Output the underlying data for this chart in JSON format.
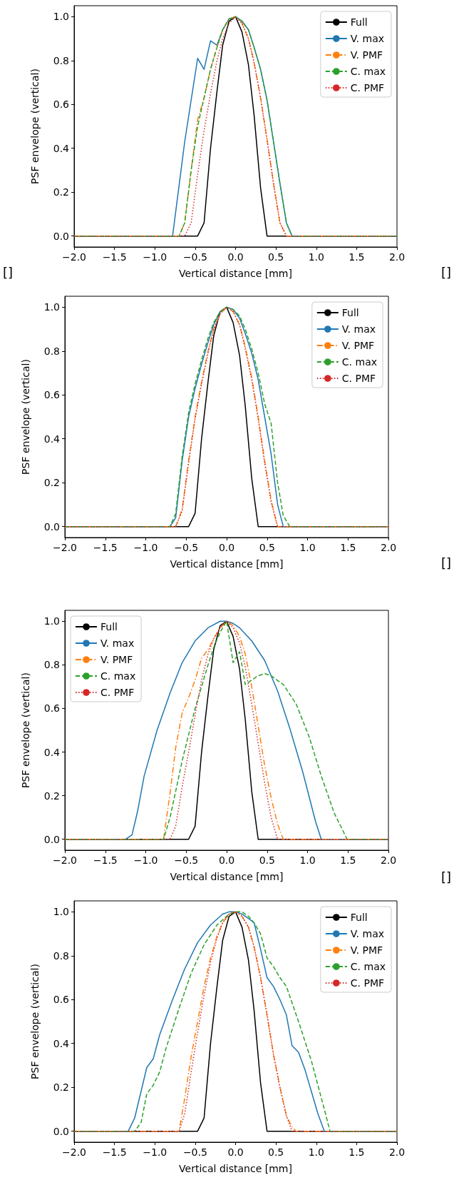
{
  "chart_data": [
    {
      "type": "line",
      "xlabel": "Vertical distance [mm]",
      "ylabel": "PSF envelope (vertical)",
      "annotations": [
        "[]",
        "[]"
      ],
      "legend": "top right",
      "grid": false,
      "marker": "none",
      "xlim": [
        -2,
        2
      ],
      "xticks": [
        {
          "value": -2,
          "label": "−2.0"
        },
        {
          "value": -1.5,
          "label": "−1.5"
        },
        {
          "value": -1,
          "label": "−1.0"
        },
        {
          "value": -0.5,
          "label": "−0.5"
        },
        {
          "value": 0,
          "label": "0.0"
        },
        {
          "value": 0.5,
          "label": "0.5"
        },
        {
          "value": 1,
          "label": "1.0"
        },
        {
          "value": 1.5,
          "label": "1.5"
        },
        {
          "value": 2,
          "label": "2.0"
        }
      ],
      "ylim": [
        -0.05,
        1.05
      ],
      "yticks": [
        {
          "value": 0,
          "label": "0.0"
        },
        {
          "value": 0.2,
          "label": "0.2"
        },
        {
          "value": 0.4,
          "label": "0.4"
        },
        {
          "value": 0.6,
          "label": "0.6"
        },
        {
          "value": 0.8,
          "label": "0.8"
        },
        {
          "value": 1,
          "label": "1.0"
        }
      ],
      "series": [
        {
          "name": "Full",
          "color": "#000000",
          "line_style": "solid",
          "x": [
            -2,
            -0.47,
            -0.39,
            -0.31,
            -0.23,
            -0.16,
            -0.08,
            0,
            0.08,
            0.16,
            0.23,
            0.31,
            0.39,
            2
          ],
          "values": [
            0,
            0,
            0.06,
            0.4,
            0.66,
            0.87,
            0.98,
            1.0,
            0.93,
            0.78,
            0.55,
            0.22,
            0,
            0
          ]
        },
        {
          "name": "V. max",
          "color": "#1f77b4",
          "line_style": "solid",
          "x": [
            -2,
            -0.78,
            -0.63,
            -0.47,
            -0.39,
            -0.31,
            -0.23,
            -0.16,
            -0.08,
            0,
            0.08,
            0.16,
            0.23,
            0.31,
            0.39,
            0.47,
            0.55,
            0.63,
            0.7,
            2
          ],
          "values": [
            0,
            0,
            0.43,
            0.81,
            0.76,
            0.89,
            0.87,
            0.94,
            0.99,
            1.0,
            0.98,
            0.94,
            0.86,
            0.76,
            0.62,
            0.43,
            0.24,
            0.06,
            0,
            0
          ]
        },
        {
          "name": "V. PMF",
          "color": "#ff7f0e",
          "line_style": "dashdot",
          "x": [
            -2,
            -0.7,
            -0.63,
            -0.55,
            -0.47,
            -0.39,
            -0.31,
            -0.23,
            -0.16,
            -0.08,
            0,
            0.08,
            0.16,
            0.23,
            0.31,
            0.39,
            0.47,
            0.55,
            0.63,
            2
          ],
          "values": [
            0,
            0,
            0.06,
            0.3,
            0.53,
            0.63,
            0.76,
            0.86,
            0.94,
            0.99,
            1,
            0.97,
            0.9,
            0.79,
            0.63,
            0.44,
            0.24,
            0.06,
            0,
            0
          ]
        },
        {
          "name": "C. max",
          "color": "#2ca02c",
          "line_style": "dashed",
          "x": [
            -2,
            -0.7,
            -0.63,
            -0.55,
            -0.47,
            -0.39,
            -0.31,
            -0.23,
            -0.16,
            -0.08,
            0,
            0.08,
            0.16,
            0.23,
            0.31,
            0.39,
            0.47,
            0.55,
            0.63,
            0.7,
            2
          ],
          "values": [
            0,
            0,
            0.06,
            0.3,
            0.5,
            0.63,
            0.76,
            0.86,
            0.94,
            0.99,
            1.0,
            0.98,
            0.94,
            0.86,
            0.76,
            0.62,
            0.43,
            0.24,
            0.06,
            0,
            0
          ]
        },
        {
          "name": "C. PMF",
          "color": "#d62728",
          "line_style": "dotted",
          "x": [
            -2,
            -0.63,
            -0.55,
            -0.47,
            -0.39,
            -0.31,
            -0.23,
            -0.16,
            -0.08,
            0,
            0.08,
            0.16,
            0.23,
            0.31,
            0.39,
            0.47,
            0.55,
            0.63,
            2
          ],
          "values": [
            0,
            0,
            0.06,
            0.28,
            0.48,
            0.65,
            0.8,
            0.9,
            0.97,
            1,
            0.97,
            0.9,
            0.79,
            0.63,
            0.44,
            0.24,
            0.06,
            0,
            0
          ]
        }
      ]
    },
    {
      "type": "line",
      "xlabel": "Vertical distance [mm]",
      "ylabel": "PSF envelope (vertical)",
      "annotations": [
        "[]"
      ],
      "legend": "top right",
      "grid": false,
      "marker": "none",
      "xlim": [
        -2,
        2
      ],
      "xticks": [
        {
          "value": -2,
          "label": "−2.0"
        },
        {
          "value": -1.5,
          "label": "−1.5"
        },
        {
          "value": -1,
          "label": "−1.0"
        },
        {
          "value": -0.5,
          "label": "−0.5"
        },
        {
          "value": 0,
          "label": "0.0"
        },
        {
          "value": 0.5,
          "label": "0.5"
        },
        {
          "value": 1,
          "label": "1.0"
        },
        {
          "value": 1.5,
          "label": "1.5"
        },
        {
          "value": 2,
          "label": "2.0"
        }
      ],
      "ylim": [
        -0.05,
        1.05
      ],
      "yticks": [
        {
          "value": 0,
          "label": "0.0"
        },
        {
          "value": 0.2,
          "label": "0.2"
        },
        {
          "value": 0.4,
          "label": "0.4"
        },
        {
          "value": 0.6,
          "label": "0.6"
        },
        {
          "value": 0.8,
          "label": "0.8"
        },
        {
          "value": 1,
          "label": "1.0"
        }
      ],
      "series": [
        {
          "name": "Full",
          "color": "#000000",
          "line_style": "solid",
          "x": [
            -2,
            -0.47,
            -0.39,
            -0.31,
            -0.23,
            -0.16,
            -0.08,
            0,
            0.08,
            0.16,
            0.23,
            0.31,
            0.39,
            2
          ],
          "values": [
            0,
            0,
            0.06,
            0.4,
            0.66,
            0.87,
            0.98,
            1.0,
            0.93,
            0.78,
            0.55,
            0.22,
            0,
            0
          ]
        },
        {
          "name": "V. max",
          "color": "#1f77b4",
          "line_style": "solid",
          "x": [
            -2,
            -0.7,
            -0.63,
            -0.55,
            -0.47,
            -0.39,
            -0.31,
            -0.23,
            -0.16,
            -0.08,
            0,
            0.08,
            0.16,
            0.23,
            0.31,
            0.39,
            0.47,
            0.55,
            0.63,
            0.7,
            2
          ],
          "values": [
            0,
            0,
            0.04,
            0.3,
            0.5,
            0.63,
            0.74,
            0.84,
            0.92,
            0.98,
            1,
            0.99,
            0.95,
            0.88,
            0.79,
            0.67,
            0.5,
            0.33,
            0.1,
            0,
            0
          ]
        },
        {
          "name": "V. PMF",
          "color": "#ff7f0e",
          "line_style": "dashdot",
          "x": [
            -2,
            -0.63,
            -0.55,
            -0.47,
            -0.39,
            -0.31,
            -0.23,
            -0.16,
            -0.08,
            0,
            0.08,
            0.16,
            0.23,
            0.31,
            0.39,
            0.47,
            0.55,
            0.63,
            2
          ],
          "values": [
            0,
            0,
            0.08,
            0.3,
            0.5,
            0.66,
            0.8,
            0.9,
            0.97,
            1,
            0.98,
            0.92,
            0.82,
            0.68,
            0.5,
            0.3,
            0.12,
            0,
            0
          ]
        },
        {
          "name": "C. max",
          "color": "#2ca02c",
          "line_style": "dashed",
          "x": [
            -2,
            -0.7,
            -0.63,
            -0.55,
            -0.47,
            -0.39,
            -0.31,
            -0.23,
            -0.16,
            -0.08,
            0,
            0.08,
            0.16,
            0.23,
            0.31,
            0.39,
            0.47,
            0.55,
            0.63,
            0.7,
            0.78,
            2
          ],
          "values": [
            0,
            0,
            0.06,
            0.32,
            0.52,
            0.65,
            0.76,
            0.86,
            0.93,
            0.98,
            1,
            0.99,
            0.96,
            0.9,
            0.81,
            0.7,
            0.56,
            0.47,
            0.2,
            0.05,
            0,
            0
          ]
        },
        {
          "name": "C. PMF",
          "color": "#d62728",
          "line_style": "dotted",
          "x": [
            -2,
            -0.63,
            -0.55,
            -0.47,
            -0.39,
            -0.31,
            -0.23,
            -0.16,
            -0.08,
            0,
            0.08,
            0.16,
            0.23,
            0.31,
            0.39,
            0.47,
            0.55,
            0.63,
            2
          ],
          "values": [
            0,
            0,
            0.07,
            0.29,
            0.49,
            0.65,
            0.79,
            0.9,
            0.97,
            1,
            0.98,
            0.92,
            0.81,
            0.67,
            0.49,
            0.29,
            0.11,
            0,
            0
          ]
        }
      ]
    },
    {
      "type": "line",
      "xlabel": "Vertical distance [mm]",
      "ylabel": "PSF envelope (vertical)",
      "annotations": [
        "[]"
      ],
      "legend": "top left",
      "grid": false,
      "marker": "none",
      "xlim": [
        -2,
        2
      ],
      "xticks": [
        {
          "value": -2,
          "label": "−2.0"
        },
        {
          "value": -1.5,
          "label": "−1.5"
        },
        {
          "value": -1,
          "label": "−1.0"
        },
        {
          "value": -0.5,
          "label": "−0.5"
        },
        {
          "value": 0,
          "label": "0.0"
        },
        {
          "value": 0.5,
          "label": "0.5"
        },
        {
          "value": 1,
          "label": "1.0"
        },
        {
          "value": 1.5,
          "label": "1.5"
        },
        {
          "value": 2,
          "label": "2.0"
        }
      ],
      "ylim": [
        -0.05,
        1.05
      ],
      "yticks": [
        {
          "value": 0,
          "label": "0.0"
        },
        {
          "value": 0.2,
          "label": "0.2"
        },
        {
          "value": 0.4,
          "label": "0.4"
        },
        {
          "value": 0.6,
          "label": "0.6"
        },
        {
          "value": 0.8,
          "label": "0.8"
        },
        {
          "value": 1,
          "label": "1.0"
        }
      ],
      "series": [
        {
          "name": "Full",
          "color": "#000000",
          "line_style": "solid",
          "x": [
            -2,
            -0.47,
            -0.39,
            -0.31,
            -0.23,
            -0.16,
            -0.08,
            0,
            0.08,
            0.16,
            0.23,
            0.31,
            0.39,
            2
          ],
          "values": [
            0,
            0,
            0.06,
            0.4,
            0.66,
            0.87,
            0.98,
            1.0,
            0.93,
            0.78,
            0.55,
            0.22,
            0,
            0
          ]
        },
        {
          "name": "V. max",
          "color": "#1f77b4",
          "line_style": "solid",
          "x": [
            -2,
            -1.25,
            -1.17,
            -1.1,
            -1.02,
            -0.86,
            -0.7,
            -0.55,
            -0.39,
            -0.23,
            -0.08,
            0,
            0.08,
            0.16,
            0.31,
            0.47,
            0.63,
            0.78,
            0.94,
            1.1,
            1.17,
            2
          ],
          "values": [
            0,
            0,
            0.02,
            0.13,
            0.29,
            0.5,
            0.67,
            0.81,
            0.91,
            0.97,
            1.0,
            1,
            0.99,
            0.97,
            0.91,
            0.82,
            0.68,
            0.51,
            0.31,
            0.08,
            0,
            0
          ]
        },
        {
          "name": "V. PMF",
          "color": "#ff7f0e",
          "line_style": "dashdot",
          "x": [
            -2,
            -0.78,
            -0.7,
            -0.63,
            -0.55,
            -0.47,
            -0.39,
            -0.31,
            -0.23,
            -0.16,
            -0.08,
            0,
            0.08,
            0.16,
            0.23,
            0.31,
            0.39,
            0.47,
            0.55,
            0.63,
            0.7,
            2
          ],
          "values": [
            0,
            0,
            0.21,
            0.42,
            0.58,
            0.65,
            0.73,
            0.83,
            0.87,
            0.92,
            0.97,
            1,
            0.98,
            0.93,
            0.85,
            0.7,
            0.52,
            0.34,
            0.19,
            0.07,
            0,
            0
          ]
        },
        {
          "name": "C. max",
          "color": "#2ca02c",
          "line_style": "dashed",
          "x": [
            -2,
            -0.78,
            -0.7,
            -0.63,
            -0.55,
            -0.47,
            -0.39,
            -0.31,
            -0.23,
            -0.16,
            -0.08,
            0,
            0.08,
            0.16,
            0.23,
            0.31,
            0.39,
            0.47,
            0.55,
            0.7,
            0.86,
            1.02,
            1.17,
            1.33,
            1.49,
            2
          ],
          "values": [
            0,
            0,
            0.1,
            0.22,
            0.36,
            0.48,
            0.6,
            0.7,
            0.8,
            0.88,
            0.95,
            1,
            0.81,
            0.86,
            0.71,
            0.73,
            0.75,
            0.76,
            0.75,
            0.71,
            0.62,
            0.47,
            0.29,
            0.12,
            0,
            0
          ]
        },
        {
          "name": "C. PMF",
          "color": "#d62728",
          "line_style": "dotted",
          "x": [
            -2,
            -0.7,
            -0.63,
            -0.55,
            -0.47,
            -0.39,
            -0.31,
            -0.23,
            -0.16,
            -0.08,
            0,
            0.08,
            0.16,
            0.23,
            0.31,
            0.39,
            0.47,
            0.55,
            0.63,
            2
          ],
          "values": [
            0,
            0,
            0.06,
            0.24,
            0.4,
            0.57,
            0.73,
            0.85,
            0.92,
            0.97,
            1,
            0.97,
            0.9,
            0.79,
            0.62,
            0.44,
            0.26,
            0.1,
            0,
            0
          ]
        }
      ]
    },
    {
      "type": "line",
      "xlabel": "Vertical distance [mm]",
      "ylabel": "PSF envelope (vertical)",
      "legend": "top right",
      "grid": false,
      "marker": "none",
      "xlim": [
        -2,
        2
      ],
      "xticks": [
        {
          "value": -2,
          "label": "−2.0"
        },
        {
          "value": -1.5,
          "label": "−1.5"
        },
        {
          "value": -1,
          "label": "−1.0"
        },
        {
          "value": -0.5,
          "label": "−0.5"
        },
        {
          "value": 0,
          "label": "0.0"
        },
        {
          "value": 0.5,
          "label": "0.5"
        },
        {
          "value": 1,
          "label": "1.0"
        },
        {
          "value": 1.5,
          "label": "1.5"
        },
        {
          "value": 2,
          "label": "2.0"
        }
      ],
      "ylim": [
        -0.05,
        1.05
      ],
      "yticks": [
        {
          "value": 0,
          "label": "0.0"
        },
        {
          "value": 0.2,
          "label": "0.2"
        },
        {
          "value": 0.4,
          "label": "0.4"
        },
        {
          "value": 0.6,
          "label": "0.6"
        },
        {
          "value": 0.8,
          "label": "0.8"
        },
        {
          "value": 1,
          "label": "1.0"
        }
      ],
      "series": [
        {
          "name": "Full",
          "color": "#000000",
          "line_style": "solid",
          "x": [
            -2,
            -0.47,
            -0.39,
            -0.31,
            -0.23,
            -0.16,
            -0.08,
            0,
            0.08,
            0.16,
            0.23,
            0.31,
            0.39,
            2
          ],
          "values": [
            0,
            0,
            0.06,
            0.4,
            0.66,
            0.87,
            0.98,
            1.0,
            0.93,
            0.78,
            0.55,
            0.22,
            0,
            0
          ]
        },
        {
          "name": "V. max",
          "color": "#1f77b4",
          "line_style": "solid",
          "x": [
            -2,
            -1.33,
            -1.25,
            -1.1,
            -1.02,
            -0.94,
            -0.78,
            -0.63,
            -0.47,
            -0.31,
            -0.16,
            -0.08,
            0,
            0.08,
            0.16,
            0.23,
            0.31,
            0.39,
            0.47,
            0.55,
            0.63,
            0.7,
            0.78,
            0.86,
            0.94,
            1.02,
            1.1,
            2
          ],
          "values": [
            0,
            0,
            0.06,
            0.29,
            0.33,
            0.44,
            0.6,
            0.74,
            0.86,
            0.94,
            0.99,
            1.0,
            1,
            0.99,
            0.97,
            0.95,
            0.83,
            0.7,
            0.66,
            0.6,
            0.53,
            0.39,
            0.36,
            0.28,
            0.18,
            0.08,
            0,
            0
          ]
        },
        {
          "name": "V. PMF",
          "color": "#ff7f0e",
          "line_style": "dashdot",
          "x": [
            -2,
            -0.7,
            -0.63,
            -0.55,
            -0.47,
            -0.39,
            -0.31,
            -0.23,
            -0.16,
            -0.08,
            0,
            0.08,
            0.16,
            0.23,
            0.31,
            0.39,
            0.47,
            0.55,
            0.63,
            0.7,
            0.75,
            2
          ],
          "values": [
            0,
            0,
            0.15,
            0.34,
            0.5,
            0.66,
            0.79,
            0.89,
            0.95,
            0.99,
            1,
            0.98,
            0.93,
            0.84,
            0.7,
            0.53,
            0.35,
            0.2,
            0.07,
            0.02,
            0,
            0
          ]
        },
        {
          "name": "C. max",
          "color": "#2ca02c",
          "line_style": "dashed",
          "x": [
            -2,
            -1.25,
            -1.17,
            -1.1,
            -1.02,
            -0.94,
            -0.86,
            -0.7,
            -0.55,
            -0.39,
            -0.23,
            -0.08,
            0,
            0.08,
            0.16,
            0.23,
            0.31,
            0.39,
            0.47,
            0.55,
            0.63,
            0.78,
            0.94,
            1.1,
            1.17,
            2
          ],
          "values": [
            0,
            0,
            0.04,
            0.17,
            0.21,
            0.27,
            0.38,
            0.56,
            0.72,
            0.85,
            0.94,
            0.99,
            1,
            1.0,
            0.98,
            0.95,
            0.9,
            0.79,
            0.75,
            0.7,
            0.66,
            0.5,
            0.32,
            0.1,
            0,
            0
          ]
        },
        {
          "name": "C. PMF",
          "color": "#d62728",
          "line_style": "dotted",
          "x": [
            -2,
            -0.7,
            -0.63,
            -0.55,
            -0.47,
            -0.39,
            -0.31,
            -0.23,
            -0.16,
            -0.08,
            0,
            0.08,
            0.16,
            0.23,
            0.31,
            0.39,
            0.47,
            0.55,
            0.63,
            0.7,
            2
          ],
          "values": [
            0,
            0,
            0.08,
            0.27,
            0.45,
            0.62,
            0.77,
            0.88,
            0.95,
            0.99,
            1,
            0.98,
            0.93,
            0.84,
            0.7,
            0.53,
            0.35,
            0.2,
            0.07,
            0,
            0
          ]
        }
      ]
    }
  ]
}
